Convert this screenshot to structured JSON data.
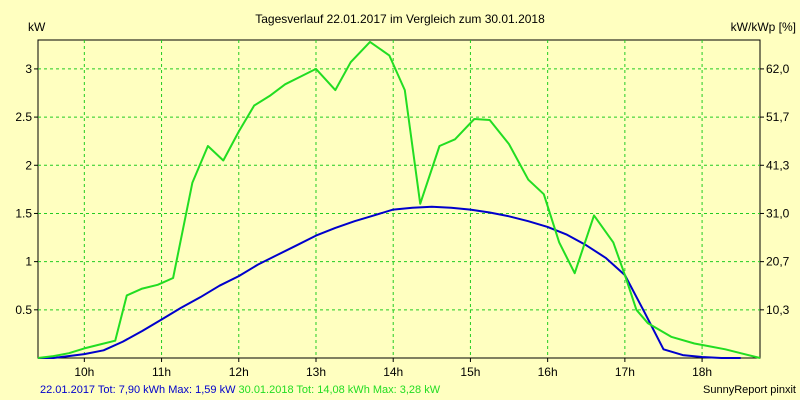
{
  "chart_data": {
    "type": "line",
    "title": "Tagesverlauf 22.01.2017 im Vergleich zum 30.01.2018",
    "ylabel_left": "kW",
    "ylabel_right": "kW/kWp [%]",
    "ylim": [
      0,
      3.3
    ],
    "yticks_left": [
      {
        "value": 0.5,
        "label": "0.5"
      },
      {
        "value": 1,
        "label": "1"
      },
      {
        "value": 1.5,
        "label": "1.5"
      },
      {
        "value": 2,
        "label": "2"
      },
      {
        "value": 2.5,
        "label": "2.5"
      },
      {
        "value": 3,
        "label": "3"
      }
    ],
    "yticks_right": [
      {
        "value": 0.5,
        "label": "10,3"
      },
      {
        "value": 1,
        "label": "20,7"
      },
      {
        "value": 1.5,
        "label": "31,0"
      },
      {
        "value": 2,
        "label": "41,3"
      },
      {
        "value": 2.5,
        "label": "51,7"
      },
      {
        "value": 3,
        "label": "62,0"
      }
    ],
    "xlim": [
      9.4,
      18.75
    ],
    "xticks": [
      {
        "value": 10,
        "label": "10h"
      },
      {
        "value": 11,
        "label": "11h"
      },
      {
        "value": 12,
        "label": "12h"
      },
      {
        "value": 13,
        "label": "13h"
      },
      {
        "value": 14,
        "label": "14h"
      },
      {
        "value": 15,
        "label": "15h"
      },
      {
        "value": 16,
        "label": "16h"
      },
      {
        "value": 17,
        "label": "17h"
      },
      {
        "value": 18,
        "label": "18h"
      }
    ],
    "grid": true,
    "series": [
      {
        "name": "22.01.2017",
        "color": "#0000cc",
        "x": [
          9.4,
          9.6,
          10.0,
          10.25,
          10.5,
          10.75,
          11.0,
          11.25,
          11.5,
          11.75,
          12.0,
          12.25,
          12.5,
          12.75,
          13.0,
          13.25,
          13.5,
          13.75,
          14.0,
          14.25,
          14.5,
          14.75,
          15.0,
          15.25,
          15.5,
          15.75,
          16.0,
          16.25,
          16.5,
          16.75,
          17.0,
          17.25,
          17.5,
          17.75,
          18.0,
          18.25,
          18.5
        ],
        "y": [
          0.0,
          0.0,
          0.04,
          0.08,
          0.17,
          0.28,
          0.4,
          0.52,
          0.63,
          0.75,
          0.85,
          0.97,
          1.07,
          1.17,
          1.27,
          1.35,
          1.42,
          1.48,
          1.54,
          1.56,
          1.57,
          1.56,
          1.54,
          1.51,
          1.47,
          1.42,
          1.36,
          1.28,
          1.17,
          1.04,
          0.86,
          0.48,
          0.09,
          0.03,
          0.01,
          0.0,
          0.0
        ]
      },
      {
        "name": "30.01.2018",
        "color": "#22dd22",
        "x": [
          9.4,
          9.6,
          9.8,
          10.0,
          10.2,
          10.4,
          10.55,
          10.75,
          10.95,
          11.15,
          11.4,
          11.6,
          11.8,
          12.0,
          12.2,
          12.4,
          12.6,
          12.8,
          13.0,
          13.25,
          13.45,
          13.7,
          13.95,
          14.15,
          14.35,
          14.6,
          14.8,
          15.05,
          15.25,
          15.5,
          15.75,
          15.95,
          16.15,
          16.35,
          16.6,
          16.85,
          17.0,
          17.15,
          17.3,
          17.6,
          17.9,
          18.1,
          18.3,
          18.5,
          18.75
        ],
        "y": [
          0.0,
          0.02,
          0.05,
          0.1,
          0.14,
          0.18,
          0.65,
          0.72,
          0.76,
          0.83,
          1.82,
          2.2,
          2.05,
          2.35,
          2.62,
          2.72,
          2.84,
          2.92,
          3.0,
          2.78,
          3.07,
          3.28,
          3.14,
          2.78,
          1.6,
          2.2,
          2.27,
          2.48,
          2.47,
          2.22,
          1.85,
          1.7,
          1.2,
          0.88,
          1.48,
          1.2,
          0.86,
          0.5,
          0.36,
          0.22,
          0.15,
          0.12,
          0.09,
          0.05,
          0.0
        ]
      }
    ],
    "footer_left": [
      {
        "text": "22.01.2017 Tot: 7,90 kWh Max: 1,59 kW",
        "color": "#0000cc"
      },
      {
        "text": "30.01.2018 Tot: 14,08 kWh Max: 3,28 kW",
        "color": "#22dd22"
      }
    ],
    "footer_right": "SunnyReport pinxit"
  }
}
